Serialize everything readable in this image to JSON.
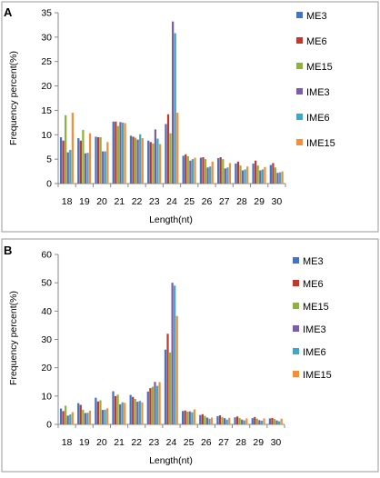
{
  "colors": {
    "ME3": "#4472c4",
    "ME6": "#c0392b",
    "ME15": "#8db33a",
    "IME3": "#7a5ea8",
    "IME6": "#3fa9c4",
    "IME15": "#f28e3c",
    "axis": "#888888",
    "frame": "#9a9a9a"
  },
  "chart_data": [
    {
      "panel": "A",
      "type": "bar",
      "xlabel": "Length(nt)",
      "ylabel": "Frequency percent(%)",
      "ylim": [
        0,
        35
      ],
      "yticks": [
        0,
        5,
        10,
        15,
        20,
        25,
        30,
        35
      ],
      "grid": false,
      "legend": "right",
      "categories": [
        "18",
        "19",
        "20",
        "21",
        "22",
        "23",
        "24",
        "25",
        "26",
        "27",
        "28",
        "29",
        "30"
      ],
      "series": [
        {
          "name": "ME3",
          "values": [
            9.5,
            9.3,
            9.6,
            12.7,
            9.8,
            8.8,
            12.2,
            5.7,
            5.3,
            5.2,
            4.1,
            4.1,
            3.8
          ]
        },
        {
          "name": "ME6",
          "values": [
            8.8,
            8.8,
            9.5,
            12.7,
            9.6,
            8.5,
            14.2,
            6.0,
            5.4,
            5.4,
            4.5,
            4.7,
            4.2
          ]
        },
        {
          "name": "ME15",
          "values": [
            14.0,
            11.0,
            9.5,
            11.8,
            9.4,
            8.2,
            10.3,
            5.6,
            5.0,
            5.0,
            3.7,
            3.7,
            3.3
          ]
        },
        {
          "name": "IME3",
          "values": [
            6.4,
            6.2,
            6.6,
            12.6,
            9.0,
            11.1,
            33.2,
            4.7,
            3.3,
            3.1,
            2.7,
            2.7,
            2.2
          ]
        },
        {
          "name": "IME6",
          "values": [
            6.9,
            6.3,
            6.6,
            12.5,
            10.1,
            9.2,
            30.8,
            5.0,
            3.5,
            3.3,
            2.9,
            2.9,
            2.3
          ]
        },
        {
          "name": "IME15",
          "values": [
            14.5,
            10.3,
            8.5,
            12.4,
            9.3,
            8.1,
            14.5,
            5.3,
            4.5,
            4.2,
            3.5,
            3.4,
            2.5
          ]
        }
      ]
    },
    {
      "panel": "B",
      "type": "bar",
      "xlabel": "Length(nt)",
      "ylabel": "Frequency percent(%)",
      "ylim": [
        0,
        60
      ],
      "yticks": [
        0,
        10,
        20,
        30,
        40,
        50,
        60
      ],
      "grid": false,
      "legend": "right",
      "categories": [
        "18",
        "19",
        "20",
        "21",
        "22",
        "23",
        "24",
        "25",
        "26",
        "27",
        "28",
        "29",
        "30"
      ],
      "series": [
        {
          "name": "ME3",
          "values": [
            5.6,
            7.5,
            9.4,
            11.7,
            10.4,
            11.6,
            26.4,
            4.7,
            3.3,
            2.9,
            2.5,
            2.2,
            2.1
          ]
        },
        {
          "name": "ME6",
          "values": [
            4.7,
            6.9,
            8.1,
            10.0,
            9.7,
            12.8,
            32.0,
            4.9,
            3.6,
            3.2,
            2.8,
            2.6,
            2.3
          ]
        },
        {
          "name": "ME15",
          "values": [
            6.6,
            5.2,
            8.5,
            10.5,
            9.0,
            13.3,
            25.4,
            4.5,
            3.0,
            2.6,
            2.2,
            2.0,
            1.9
          ]
        },
        {
          "name": "IME3",
          "values": [
            3.1,
            4.0,
            5.1,
            7.1,
            8.0,
            15.0,
            50.0,
            4.6,
            2.4,
            2.2,
            1.7,
            1.5,
            1.4
          ]
        },
        {
          "name": "IME6",
          "values": [
            3.5,
            4.1,
            5.2,
            7.8,
            8.3,
            13.6,
            49.0,
            4.3,
            2.0,
            1.7,
            1.4,
            1.3,
            1.1
          ]
        },
        {
          "name": "IME15",
          "values": [
            4.3,
            4.8,
            5.7,
            7.6,
            7.8,
            14.9,
            38.3,
            5.3,
            2.4,
            2.3,
            2.1,
            2.1,
            2.0
          ]
        }
      ]
    }
  ]
}
